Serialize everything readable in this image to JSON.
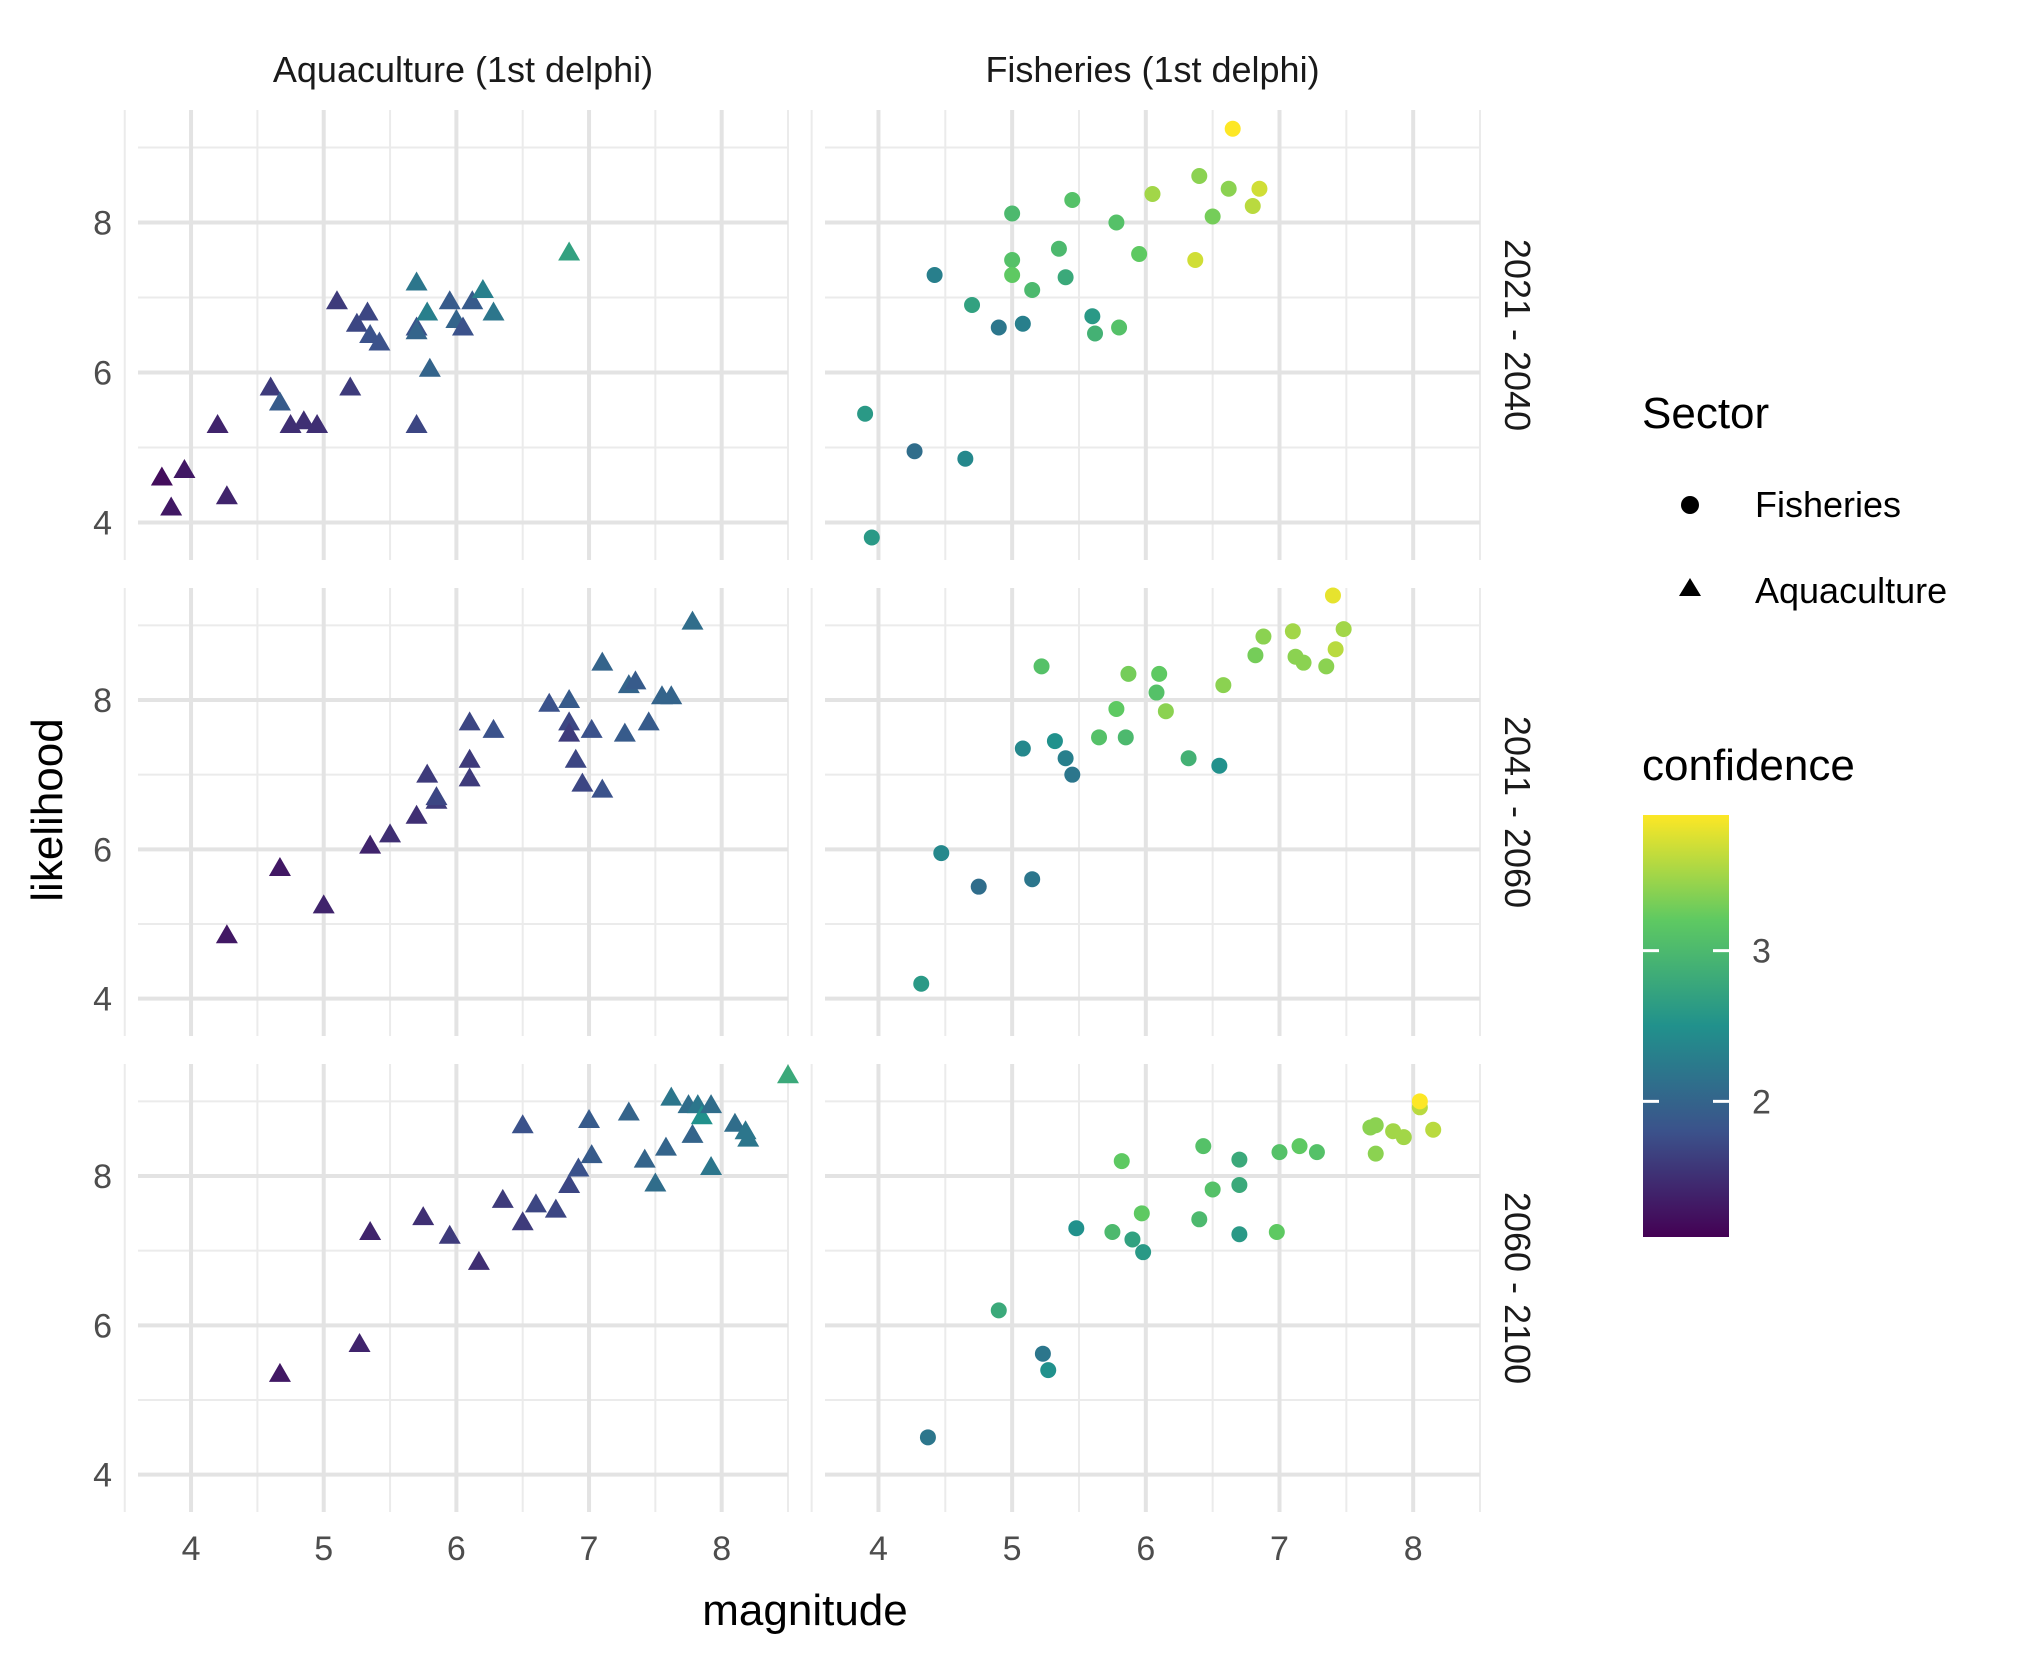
{
  "chart_data": {
    "type": "scatter",
    "title": "",
    "xlabel": "magnitude",
    "ylabel": "likelihood",
    "xlim": [
      3.6,
      8.5
    ],
    "ylim": [
      3.5,
      9.5
    ],
    "x_ticks": [
      4,
      5,
      6,
      7,
      8
    ],
    "y_ticks": [
      4,
      6,
      8
    ],
    "grid": true,
    "columns": [
      "Aquaculture (1st delphi)",
      "Fisheries (1st delphi)"
    ],
    "rows": [
      "2021 - 2040",
      "2041 - 2060",
      "2060 - 2100"
    ],
    "legend": {
      "shape_title": "Sector",
      "shape_items": [
        {
          "label": "Fisheries",
          "shape": "circle"
        },
        {
          "label": "Aquaculture",
          "shape": "triangle"
        }
      ],
      "color_title": "confidence",
      "color_ticks": [
        2,
        3
      ],
      "color_range": [
        1.1,
        3.9
      ],
      "colors": [
        "#440154",
        "#3b528b",
        "#21918c",
        "#5ec962",
        "#fde725"
      ]
    },
    "panels": [
      {
        "row": 0,
        "col": 0,
        "points": [
          [
            3.78,
            4.6,
            1.2
          ],
          [
            3.85,
            4.2,
            1.3
          ],
          [
            3.95,
            4.7,
            1.3
          ],
          [
            4.2,
            5.3,
            1.4
          ],
          [
            4.27,
            4.35,
            1.4
          ],
          [
            4.6,
            5.8,
            1.6
          ],
          [
            4.67,
            5.6,
            1.9
          ],
          [
            4.75,
            5.3,
            1.5
          ],
          [
            4.85,
            5.35,
            1.5
          ],
          [
            4.95,
            5.3,
            1.5
          ],
          [
            5.1,
            6.95,
            1.6
          ],
          [
            5.2,
            5.8,
            1.6
          ],
          [
            5.25,
            6.65,
            1.7
          ],
          [
            5.33,
            6.8,
            1.7
          ],
          [
            5.35,
            6.5,
            1.8
          ],
          [
            5.42,
            6.4,
            1.8
          ],
          [
            5.7,
            7.2,
            2.2
          ],
          [
            5.7,
            6.6,
            1.8
          ],
          [
            5.7,
            6.55,
            2.0
          ],
          [
            5.7,
            5.3,
            1.7
          ],
          [
            5.78,
            6.8,
            2.3
          ],
          [
            5.8,
            6.05,
            2.0
          ],
          [
            5.95,
            6.95,
            1.9
          ],
          [
            6.0,
            6.7,
            2.0
          ],
          [
            6.05,
            6.6,
            1.8
          ],
          [
            6.12,
            6.95,
            1.9
          ],
          [
            6.2,
            7.1,
            2.3
          ],
          [
            6.28,
            6.8,
            2.2
          ],
          [
            6.85,
            7.6,
            2.7
          ]
        ]
      },
      {
        "row": 0,
        "col": 1,
        "points": [
          [
            3.9,
            5.45,
            2.6
          ],
          [
            3.95,
            3.8,
            2.6
          ],
          [
            4.27,
            4.95,
            2.1
          ],
          [
            4.42,
            7.3,
            2.3
          ],
          [
            4.65,
            4.85,
            2.4
          ],
          [
            4.7,
            6.9,
            2.7
          ],
          [
            4.9,
            6.6,
            2.2
          ],
          [
            5.0,
            8.12,
            3.0
          ],
          [
            5.0,
            7.5,
            3.1
          ],
          [
            5.0,
            7.3,
            3.2
          ],
          [
            5.08,
            6.65,
            2.3
          ],
          [
            5.15,
            7.1,
            3.0
          ],
          [
            5.35,
            7.65,
            3.0
          ],
          [
            5.4,
            7.27,
            2.8
          ],
          [
            5.45,
            8.3,
            3.1
          ],
          [
            5.6,
            6.75,
            2.6
          ],
          [
            5.62,
            6.52,
            2.9
          ],
          [
            5.78,
            8.0,
            3.1
          ],
          [
            5.8,
            6.6,
            3.1
          ],
          [
            5.95,
            7.58,
            3.2
          ],
          [
            6.05,
            8.38,
            3.5
          ],
          [
            6.37,
            7.5,
            3.7
          ],
          [
            6.4,
            8.62,
            3.4
          ],
          [
            6.5,
            8.08,
            3.3
          ],
          [
            6.62,
            8.45,
            3.4
          ],
          [
            6.65,
            9.25,
            3.95
          ],
          [
            6.8,
            8.22,
            3.6
          ],
          [
            6.85,
            8.45,
            3.7
          ]
        ]
      },
      {
        "row": 1,
        "col": 0,
        "points": [
          [
            4.27,
            4.85,
            1.3
          ],
          [
            4.67,
            5.75,
            1.3
          ],
          [
            5.0,
            5.25,
            1.4
          ],
          [
            5.35,
            6.05,
            1.4
          ],
          [
            5.5,
            6.2,
            1.5
          ],
          [
            5.7,
            6.45,
            1.5
          ],
          [
            5.78,
            7.0,
            1.6
          ],
          [
            5.85,
            6.65,
            1.6
          ],
          [
            5.85,
            6.7,
            1.7
          ],
          [
            6.1,
            7.7,
            1.7
          ],
          [
            6.1,
            7.2,
            1.6
          ],
          [
            6.1,
            6.95,
            1.6
          ],
          [
            6.28,
            7.6,
            1.8
          ],
          [
            6.7,
            7.95,
            1.8
          ],
          [
            6.85,
            8.0,
            1.9
          ],
          [
            6.85,
            7.7,
            1.7
          ],
          [
            6.85,
            7.55,
            1.6
          ],
          [
            6.9,
            7.2,
            1.7
          ],
          [
            6.95,
            6.88,
            1.7
          ],
          [
            7.02,
            7.6,
            1.8
          ],
          [
            7.1,
            6.8,
            1.8
          ],
          [
            7.1,
            8.5,
            2.0
          ],
          [
            7.27,
            7.55,
            1.9
          ],
          [
            7.3,
            8.2,
            2.0
          ],
          [
            7.35,
            8.25,
            1.9
          ],
          [
            7.45,
            7.7,
            1.9
          ],
          [
            7.55,
            8.05,
            2.0
          ],
          [
            7.62,
            8.05,
            2.0
          ],
          [
            7.78,
            9.05,
            2.1
          ]
        ]
      },
      {
        "row": 1,
        "col": 1,
        "points": [
          [
            4.32,
            4.2,
            2.6
          ],
          [
            4.47,
            5.95,
            2.4
          ],
          [
            4.75,
            5.5,
            2.1
          ],
          [
            5.08,
            7.35,
            2.4
          ],
          [
            5.15,
            5.6,
            2.2
          ],
          [
            5.22,
            8.45,
            3.1
          ],
          [
            5.32,
            7.45,
            2.5
          ],
          [
            5.4,
            7.22,
            2.3
          ],
          [
            5.45,
            7.0,
            2.2
          ],
          [
            5.65,
            7.5,
            3.1
          ],
          [
            5.78,
            7.88,
            3.2
          ],
          [
            5.85,
            7.5,
            3.0
          ],
          [
            5.87,
            8.35,
            3.3
          ],
          [
            6.08,
            8.1,
            3.1
          ],
          [
            6.1,
            8.35,
            3.2
          ],
          [
            6.15,
            7.85,
            3.4
          ],
          [
            6.32,
            7.22,
            2.9
          ],
          [
            6.55,
            7.12,
            2.5
          ],
          [
            6.58,
            8.2,
            3.4
          ],
          [
            6.82,
            8.6,
            3.3
          ],
          [
            6.88,
            8.85,
            3.4
          ],
          [
            7.1,
            8.92,
            3.5
          ],
          [
            7.12,
            8.58,
            3.4
          ],
          [
            7.18,
            8.5,
            3.4
          ],
          [
            7.35,
            8.45,
            3.4
          ],
          [
            7.4,
            9.4,
            3.8
          ],
          [
            7.42,
            8.68,
            3.6
          ],
          [
            7.48,
            8.95,
            3.5
          ]
        ]
      },
      {
        "row": 2,
        "col": 0,
        "points": [
          [
            4.67,
            5.35,
            1.3
          ],
          [
            5.27,
            5.75,
            1.4
          ],
          [
            5.35,
            7.25,
            1.4
          ],
          [
            5.75,
            7.45,
            1.5
          ],
          [
            5.95,
            7.2,
            1.6
          ],
          [
            6.17,
            6.85,
            1.5
          ],
          [
            6.35,
            7.68,
            1.6
          ],
          [
            6.5,
            8.68,
            1.8
          ],
          [
            6.5,
            7.38,
            1.6
          ],
          [
            6.6,
            7.62,
            1.7
          ],
          [
            6.75,
            7.55,
            1.7
          ],
          [
            6.85,
            7.88,
            1.7
          ],
          [
            6.92,
            8.1,
            1.8
          ],
          [
            7.0,
            8.75,
            1.9
          ],
          [
            7.02,
            8.28,
            1.9
          ],
          [
            7.3,
            8.85,
            2.0
          ],
          [
            7.42,
            8.22,
            2.0
          ],
          [
            7.5,
            7.9,
            2.1
          ],
          [
            7.58,
            8.38,
            2.0
          ],
          [
            7.62,
            9.05,
            2.2
          ],
          [
            7.75,
            8.95,
            2.1
          ],
          [
            7.78,
            8.55,
            2.0
          ],
          [
            7.82,
            8.95,
            2.2
          ],
          [
            7.85,
            8.8,
            2.5
          ],
          [
            7.92,
            8.95,
            2.1
          ],
          [
            7.92,
            8.12,
            2.2
          ],
          [
            8.1,
            8.7,
            2.1
          ],
          [
            8.18,
            8.6,
            2.2
          ],
          [
            8.2,
            8.5,
            2.2
          ],
          [
            8.5,
            9.35,
            2.8
          ]
        ]
      },
      {
        "row": 2,
        "col": 1,
        "points": [
          [
            4.37,
            4.5,
            2.2
          ],
          [
            4.9,
            6.2,
            2.8
          ],
          [
            5.23,
            5.62,
            2.2
          ],
          [
            5.27,
            5.4,
            2.5
          ],
          [
            5.48,
            7.3,
            2.5
          ],
          [
            5.75,
            7.25,
            3.0
          ],
          [
            5.82,
            8.2,
            3.2
          ],
          [
            5.9,
            7.15,
            2.7
          ],
          [
            5.97,
            7.5,
            3.2
          ],
          [
            5.98,
            6.98,
            2.6
          ],
          [
            6.4,
            7.42,
            3.0
          ],
          [
            6.43,
            8.4,
            3.1
          ],
          [
            6.5,
            7.82,
            3.1
          ],
          [
            6.7,
            8.22,
            2.8
          ],
          [
            6.7,
            7.88,
            2.8
          ],
          [
            6.7,
            7.22,
            2.6
          ],
          [
            6.98,
            7.25,
            3.2
          ],
          [
            7.0,
            8.32,
            3.1
          ],
          [
            7.15,
            8.4,
            3.2
          ],
          [
            7.28,
            8.32,
            3.1
          ],
          [
            7.68,
            8.65,
            3.4
          ],
          [
            7.72,
            8.68,
            3.4
          ],
          [
            7.72,
            8.3,
            3.4
          ],
          [
            7.85,
            8.6,
            3.5
          ],
          [
            7.93,
            8.52,
            3.5
          ],
          [
            8.05,
            8.92,
            3.6
          ],
          [
            8.05,
            9.0,
            3.9
          ],
          [
            8.15,
            8.62,
            3.6
          ]
        ]
      }
    ]
  }
}
